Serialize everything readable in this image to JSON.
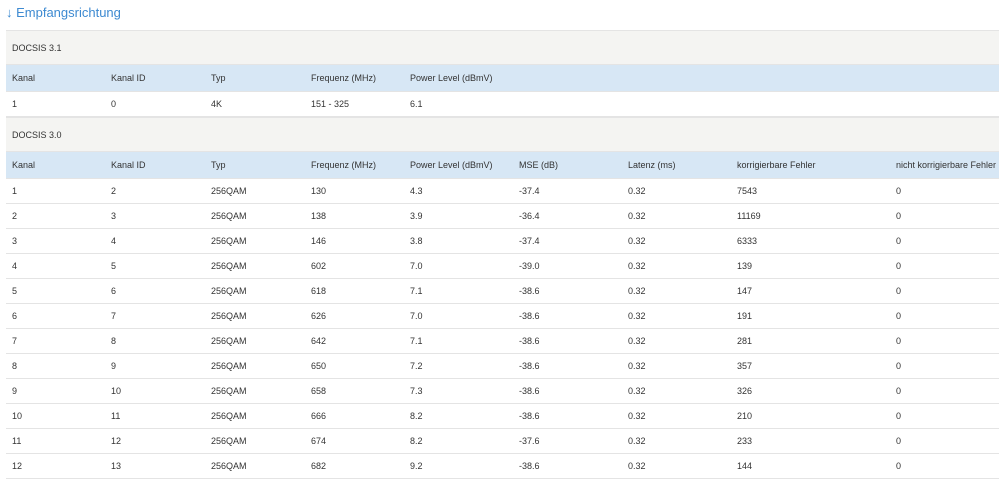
{
  "title": "↓ Empfangsrichtung",
  "sections": [
    {
      "label": "DOCSIS 3.1",
      "columns": [
        "Kanal",
        "Kanal ID",
        "Typ",
        "Frequenz (MHz)",
        "Power Level (dBmV)"
      ],
      "rows": [
        [
          "1",
          "0",
          "4K",
          "151 - 325",
          "6.1"
        ]
      ]
    },
    {
      "label": "DOCSIS 3.0",
      "columns": [
        "Kanal",
        "Kanal ID",
        "Typ",
        "Frequenz (MHz)",
        "Power Level (dBmV)",
        "MSE (dB)",
        "Latenz (ms)",
        "korrigierbare Fehler",
        "nicht korrigierbare Fehler"
      ],
      "rows": [
        [
          "1",
          "2",
          "256QAM",
          "130",
          "4.3",
          "-37.4",
          "0.32",
          "7543",
          "0"
        ],
        [
          "2",
          "3",
          "256QAM",
          "138",
          "3.9",
          "-36.4",
          "0.32",
          "11169",
          "0"
        ],
        [
          "3",
          "4",
          "256QAM",
          "146",
          "3.8",
          "-37.4",
          "0.32",
          "6333",
          "0"
        ],
        [
          "4",
          "5",
          "256QAM",
          "602",
          "7.0",
          "-39.0",
          "0.32",
          "139",
          "0"
        ],
        [
          "5",
          "6",
          "256QAM",
          "618",
          "7.1",
          "-38.6",
          "0.32",
          "147",
          "0"
        ],
        [
          "6",
          "7",
          "256QAM",
          "626",
          "7.0",
          "-38.6",
          "0.32",
          "191",
          "0"
        ],
        [
          "7",
          "8",
          "256QAM",
          "642",
          "7.1",
          "-38.6",
          "0.32",
          "281",
          "0"
        ],
        [
          "8",
          "9",
          "256QAM",
          "650",
          "7.2",
          "-38.6",
          "0.32",
          "357",
          "0"
        ],
        [
          "9",
          "10",
          "256QAM",
          "658",
          "7.3",
          "-38.6",
          "0.32",
          "326",
          "0"
        ],
        [
          "10",
          "11",
          "256QAM",
          "666",
          "8.2",
          "-38.6",
          "0.32",
          "210",
          "0"
        ],
        [
          "11",
          "12",
          "256QAM",
          "674",
          "8.2",
          "-37.6",
          "0.32",
          "233",
          "0"
        ],
        [
          "12",
          "13",
          "256QAM",
          "682",
          "9.2",
          "-38.6",
          "0.32",
          "144",
          "0"
        ]
      ]
    }
  ]
}
